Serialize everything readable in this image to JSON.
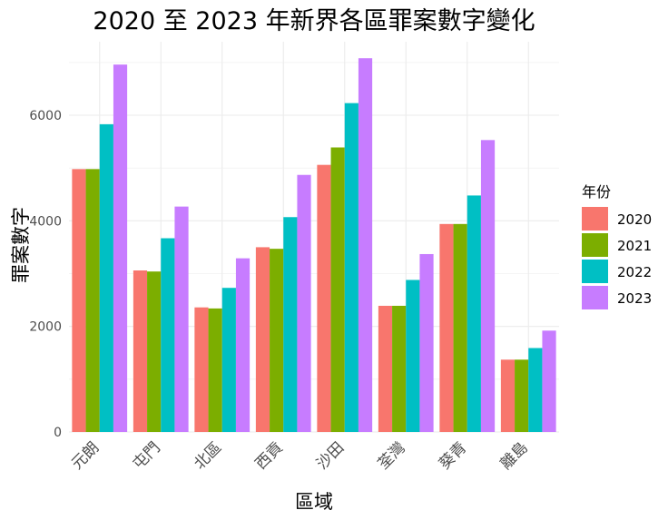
{
  "chart_data": {
    "type": "bar",
    "title": "2020 至 2023 年新界各區罪案數字變化",
    "xlabel": "區域",
    "ylabel": "罪案數字",
    "categories": [
      "元朗",
      "屯門",
      "北區",
      "西貢",
      "沙田",
      "荃灣",
      "葵青",
      "離島"
    ],
    "series": [
      {
        "name": "2020",
        "color": "#F8766D",
        "values": [
          4980,
          3060,
          2360,
          3500,
          5060,
          2390,
          3940,
          1370
        ]
      },
      {
        "name": "2021",
        "color": "#7CAE00",
        "values": [
          4980,
          3040,
          2340,
          3470,
          5390,
          2390,
          3940,
          1370
        ]
      },
      {
        "name": "2022",
        "color": "#00BFC4",
        "values": [
          5830,
          3670,
          2730,
          4070,
          6230,
          2880,
          4480,
          1590
        ]
      },
      {
        "name": "2023",
        "color": "#C77CFF",
        "values": [
          6960,
          4270,
          3290,
          4870,
          7080,
          3370,
          5530,
          1920
        ]
      }
    ],
    "yticks": [
      0,
      2000,
      4000,
      6000
    ],
    "ylim": [
      0,
      7100
    ],
    "legend": {
      "title": "年份",
      "position": "right"
    },
    "grid": true
  }
}
